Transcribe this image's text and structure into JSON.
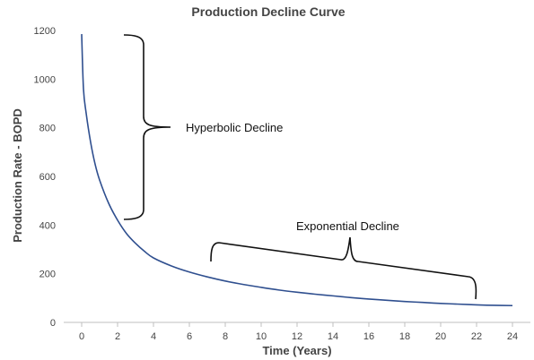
{
  "chart_data": {
    "type": "line",
    "title": "Production Decline Curve",
    "xlabel": "Time (Years)",
    "ylabel": "Production Rate - BOPD",
    "xlim": [
      -1,
      25
    ],
    "ylim": [
      0,
      1200
    ],
    "xticks": [
      "0",
      "2",
      "4",
      "6",
      "8",
      "10",
      "12",
      "14",
      "16",
      "18",
      "20",
      "22",
      "24"
    ],
    "yticks": [
      "0",
      "200",
      "400",
      "600",
      "800",
      "1000",
      "1200"
    ],
    "grid": false,
    "series": [
      {
        "color": "#2f4f8f",
        "x": [
          0,
          0.1,
          0.25,
          0.5,
          0.75,
          1,
          1.5,
          2,
          2.5,
          3,
          3.5,
          4,
          5,
          6,
          7,
          8,
          9,
          10,
          11,
          12,
          13,
          14,
          15,
          16,
          17,
          18,
          19,
          20,
          21,
          22,
          23,
          24
        ],
        "y": [
          1185,
          960,
          860,
          740,
          650,
          585,
          490,
          420,
          365,
          325,
          292,
          265,
          232,
          207,
          187,
          170,
          156,
          144,
          133,
          124,
          116,
          109,
          102,
          96,
          91,
          86,
          82,
          78,
          75,
          72,
          70,
          69
        ]
      }
    ],
    "annotations": [
      {
        "label": "Hyperbolic Decline",
        "x_range": [
          2.5,
          3.5
        ],
        "y_range": [
          420,
          1180
        ]
      },
      {
        "label": "Exponential Decline",
        "x_range": [
          7.2,
          22
        ],
        "y_range": [
          95,
          325
        ]
      }
    ]
  }
}
